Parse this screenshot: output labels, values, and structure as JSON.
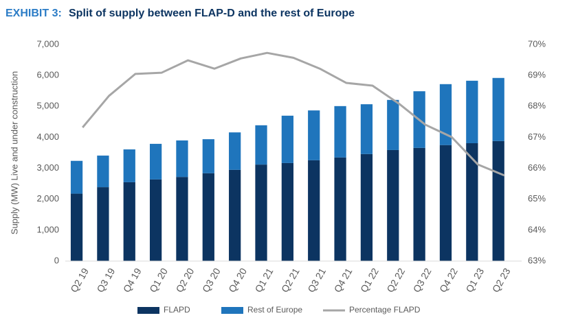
{
  "chart_data": {
    "type": "bar",
    "stacked": true,
    "exhibit": "EXHIBIT 3:",
    "title": "Split of supply between FLAP-D and the rest of Europe",
    "y_label": "Supply (MW) Live and under construction",
    "categories": [
      "Q2 19",
      "Q3 19",
      "Q4 19",
      "Q1 20",
      "Q2 20",
      "Q3 20",
      "Q4 20",
      "Q1 21",
      "Q2 21",
      "Q3 21",
      "Q4 21",
      "Q1 22",
      "Q2 22",
      "Q3 22",
      "Q4 22",
      "Q1 23",
      "Q2 23"
    ],
    "series": [
      {
        "name": "FLAPD",
        "color": "#0c3461",
        "type": "bar",
        "values": [
          2180,
          2390,
          2550,
          2640,
          2720,
          2840,
          2950,
          3120,
          3170,
          3260,
          3350,
          3460,
          3590,
          3660,
          3750,
          3810,
          3880
        ]
      },
      {
        "name": "Rest of Europe",
        "color": "#1f75bc",
        "type": "bar",
        "values": [
          1060,
          1020,
          1060,
          1150,
          1180,
          1100,
          1210,
          1270,
          1530,
          1610,
          1660,
          1610,
          1620,
          1830,
          1970,
          2020,
          2040
        ]
      },
      {
        "name": "Percentage FLAPD",
        "color": "#a6a6a6",
        "type": "line",
        "axis": "y2",
        "values": [
          67.32,
          68.34,
          69.05,
          69.09,
          69.49,
          69.22,
          69.55,
          69.73,
          69.57,
          69.22,
          68.76,
          68.67,
          68.09,
          67.41,
          67.01,
          66.12,
          65.77
        ]
      }
    ],
    "ylim": [
      0,
      7000
    ],
    "yticks": [
      0,
      {
        "value": 1000,
        "label": "1,000"
      },
      {
        "value": 2000,
        "label": "2,000"
      },
      {
        "value": 3000,
        "label": "3,000"
      },
      {
        "value": 4000,
        "label": "4,000"
      },
      {
        "value": 5000,
        "label": "5,000"
      },
      {
        "value": 6000,
        "label": "6,000"
      },
      {
        "value": 7000,
        "label": "7,000"
      }
    ],
    "y2lim": [
      63,
      70
    ],
    "y2ticks": [
      {
        "value": 63,
        "label": "63%"
      },
      {
        "value": 64,
        "label": "64%"
      },
      {
        "value": 65,
        "label": "65%"
      },
      {
        "value": 66,
        "label": "66%"
      },
      {
        "value": 67,
        "label": "67%"
      },
      {
        "value": 68,
        "label": "68%"
      },
      {
        "value": 69,
        "label": "69%"
      },
      {
        "value": 70,
        "label": "70%"
      }
    ],
    "legend": "bottom"
  }
}
